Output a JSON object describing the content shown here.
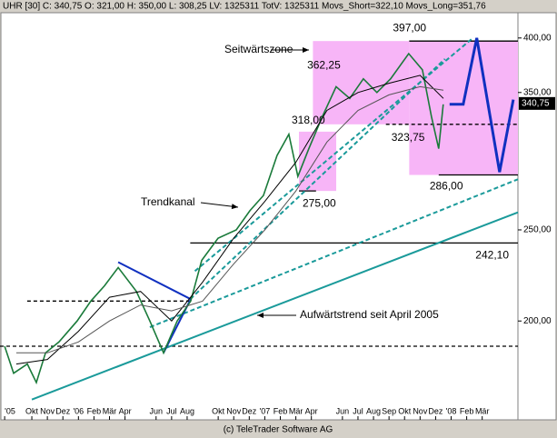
{
  "chart_data": {
    "type": "line",
    "title": "UHR [30] C: 340,75 O: 321,00 H: 350,00 L: 308,25 LV: 1325311 TotV: 1325311 Movs_Short=322,10 Movs_Long=351,76",
    "footer": "(c) TeleTrader Software AG",
    "yscale": "log",
    "ylim": [
      157,
      439
    ],
    "yticks": [
      {
        "value": 200,
        "label": "200,00"
      },
      {
        "value": 250,
        "label": "250,00"
      },
      {
        "value": 350,
        "label": "350,00"
      },
      {
        "value": 400,
        "label": "400,00"
      }
    ],
    "xlim": [
      -1.05,
      32.3
    ],
    "xticks": [
      {
        "value": -0.75,
        "label": "'05"
      },
      {
        "value": 1,
        "label": "Okt"
      },
      {
        "value": 2,
        "label": "Nov"
      },
      {
        "value": 3,
        "label": "Dez"
      },
      {
        "value": 4,
        "label": "'06"
      },
      {
        "value": 5,
        "label": "Feb"
      },
      {
        "value": 6,
        "label": "Mär"
      },
      {
        "value": 7,
        "label": "Apr"
      },
      {
        "value": 9,
        "label": "Jun"
      },
      {
        "value": 10,
        "label": "Jul"
      },
      {
        "value": 11,
        "label": "Aug"
      },
      {
        "value": 13,
        "label": "Okt"
      },
      {
        "value": 14,
        "label": "Nov"
      },
      {
        "value": 15,
        "label": "Dez"
      },
      {
        "value": 16,
        "label": "'07"
      },
      {
        "value": 17,
        "label": "Feb"
      },
      {
        "value": 18,
        "label": "Mär"
      },
      {
        "value": 19,
        "label": "Apr"
      },
      {
        "value": 21,
        "label": "Jun"
      },
      {
        "value": 22,
        "label": "Jul"
      },
      {
        "value": 23,
        "label": "Aug"
      },
      {
        "value": 24,
        "label": "Sep"
      },
      {
        "value": 25,
        "label": "Okt"
      },
      {
        "value": 26,
        "label": "Nov"
      },
      {
        "value": 27,
        "label": "Dez"
      },
      {
        "value": 28,
        "label": "'08"
      },
      {
        "value": 29,
        "label": "Feb"
      },
      {
        "value": 30,
        "label": "Mär"
      }
    ],
    "series": [
      {
        "color": "#1a7a3a",
        "x": [
          -0.75,
          -0.17,
          0.71,
          1.29,
          1.88,
          2.75,
          3.92,
          4.8,
          5.68,
          6.56,
          7.73,
          8.6,
          9.48,
          10.36,
          11.23,
          11.94,
          12.99,
          14.16,
          15.04,
          15.91,
          16.79,
          17.55,
          18.13,
          18.84,
          19.71,
          20.59,
          21.47,
          22.35,
          23.22,
          24.1,
          25.27,
          26.15,
          26.73,
          27.2,
          27.49
        ],
        "values": [
          188,
          176,
          180,
          172,
          185,
          190,
          200,
          210,
          218,
          228,
          215,
          200,
          185,
          200,
          210,
          232,
          245,
          250,
          262,
          272,
          300,
          316,
          285,
          305,
          330,
          355,
          345,
          362,
          350,
          362,
          385,
          370,
          330,
          305,
          340
        ]
      },
      {
        "color": "#000000",
        "x": [
          0,
          2,
          4,
          6,
          8,
          10,
          12,
          14,
          16,
          18,
          20,
          22,
          24,
          26,
          27.5
        ],
        "values": [
          180,
          182,
          195,
          212,
          215,
          200,
          220,
          245,
          268,
          295,
          335,
          350,
          358,
          365,
          345
        ]
      },
      {
        "color": "#555555",
        "x": [
          0,
          2,
          4,
          6,
          8,
          10,
          12,
          14,
          16,
          18,
          20,
          22,
          24,
          26,
          27.5
        ],
        "values": [
          185,
          185,
          190,
          200,
          208,
          205,
          210,
          230,
          250,
          275,
          310,
          335,
          348,
          355,
          352
        ]
      },
      {
        "color": "#1030c0",
        "x": [
          27.9,
          28.78,
          29.65,
          31.12,
          32.0
        ],
        "values": [
          340,
          340,
          400,
          288,
          344
        ]
      }
    ],
    "last_price": {
      "value": 340.75,
      "label": "340,75"
    },
    "zones": [
      {
        "x": [
          18.2,
          20.6
        ],
        "y": [
          275,
          318
        ]
      },
      {
        "x": [
          19.1,
          25.3
        ],
        "y": [
          323.75,
          397
        ]
      },
      {
        "x": [
          25.3,
          32.3
        ],
        "y": [
          286,
          397
        ]
      }
    ],
    "zone_color": "#f7b5f7",
    "levels": [
      {
        "value": 397,
        "label": "397,00",
        "x": [
          25.3,
          32.3
        ],
        "line": "solid"
      },
      {
        "value": 362.25,
        "label": "362,25",
        "x": [
          19.9,
          19.9
        ],
        "line": "none"
      },
      {
        "value": 318,
        "label": "318,00",
        "x": [
          18.2,
          18.2
        ],
        "line": "none"
      },
      {
        "value": 323.75,
        "label": "323,75",
        "x": [
          23.8,
          32.3
        ],
        "line": "dashed"
      },
      {
        "value": 275,
        "label": "275,00",
        "x": [
          18.2,
          19.3
        ],
        "line": "solid"
      },
      {
        "value": 286,
        "label": "286,00",
        "x": [
          27.2,
          32.3
        ],
        "line": "solid"
      },
      {
        "value": 242.1,
        "label": "242,10",
        "x": [
          11.2,
          32.3
        ],
        "line": "solid"
      },
      {
        "value": 210,
        "x": [
          0.7,
          11.2
        ],
        "line": "dashed"
      },
      {
        "value": 188,
        "x": [
          -1.05,
          32.3
        ],
        "line": "dashed"
      }
    ],
    "trendlines": [
      {
        "x": [
          1,
          32.3
        ],
        "y": [
          165,
          261
        ],
        "color": "#1a9a9a",
        "dashed": false
      },
      {
        "x": [
          8.6,
          32.3
        ],
        "y": [
          197,
          283
        ],
        "color": "#1a9a9a",
        "dashed": true
      },
      {
        "x": [
          11.5,
          29.4
        ],
        "y": [
          226,
          400
        ],
        "color": "#1a9a9a",
        "dashed": true
      },
      {
        "x": [
          11.2,
          27.6
        ],
        "y": [
          211,
          380
        ],
        "color": "#1a9a9a",
        "dashed": true
      },
      {
        "x": [
          6.56,
          11.23
        ],
        "y": [
          231,
          211
        ],
        "color": "#1030c0",
        "dashed": false
      },
      {
        "x": [
          9.48,
          11.23
        ],
        "y": [
          185,
          211
        ],
        "color": "#1030c0",
        "dashed": false
      }
    ],
    "annotations": [
      "Seitwärtszone",
      "Trendkanal",
      "Aufwärtstrend seit April 2005"
    ]
  }
}
